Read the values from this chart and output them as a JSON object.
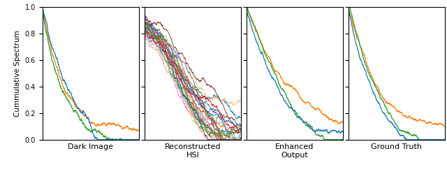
{
  "ylabel": "Cummulative Spectrum",
  "subplots": [
    "Dark Image",
    "Reconstructed\nHSI",
    "Enhanced\nOutput",
    "Ground Truth"
  ],
  "ylim": [
    0.0,
    1.0
  ],
  "xlim": [
    0.0,
    1.0
  ],
  "yticks": [
    0.0,
    0.2,
    0.4,
    0.6,
    0.8,
    1.0
  ],
  "colors_dark": [
    "#ff7f0e",
    "#2ca02c",
    "#1f77b4"
  ],
  "colors_hsi": [
    "#1f77b4",
    "#ff7f0e",
    "#2ca02c",
    "#d62728",
    "#9467bd",
    "#8c564b",
    "#e377c2",
    "#17becf",
    "#bcbd22",
    "#aec7e8",
    "#ffbb78",
    "#98df8a",
    "#ff9896",
    "#c5b0d5",
    "#f7b6d2",
    "#c49c94",
    "#c7c7c7",
    "#dbdb8d",
    "#9edae5",
    "#393b79",
    "#e6550d",
    "#31a354",
    "#756bb1",
    "#636363",
    "#843c39",
    "#7b4173",
    "#3182bd",
    "#637939",
    "#8c6d31",
    "#e41a1c"
  ],
  "colors_enhanced": [
    "#ff7f0e",
    "#2ca02c",
    "#1f77b4"
  ],
  "colors_gt": [
    "#ff7f0e",
    "#2ca02c",
    "#1f77b4"
  ],
  "background": "#ffffff",
  "linewidth": 0.9,
  "linewidth_hsi": 0.6
}
